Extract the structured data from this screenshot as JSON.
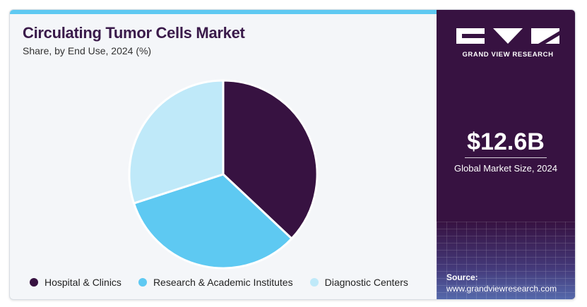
{
  "header": {
    "title": "Circulating Tumor Cells Market",
    "subtitle": "Share, by End Use, 2024 (%)"
  },
  "chart_data": {
    "type": "pie",
    "title": "Circulating Tumor Cells Market",
    "subtitle": "Share, by End Use, 2024 (%)",
    "categories": [
      "Hospital & Clinics",
      "Research & Academic Institutes",
      "Diagnostic Centers"
    ],
    "values": [
      37,
      33,
      30
    ],
    "colors": [
      "#371241",
      "#5ec9f2",
      "#bfe9f9"
    ],
    "legend_position": "bottom"
  },
  "sidebar": {
    "brand": "GRAND VIEW RESEARCH",
    "market_size": "$12.6B",
    "market_size_label": "Global Market Size, 2024",
    "source_label": "Source:",
    "source_url": "www.grandviewresearch.com"
  }
}
